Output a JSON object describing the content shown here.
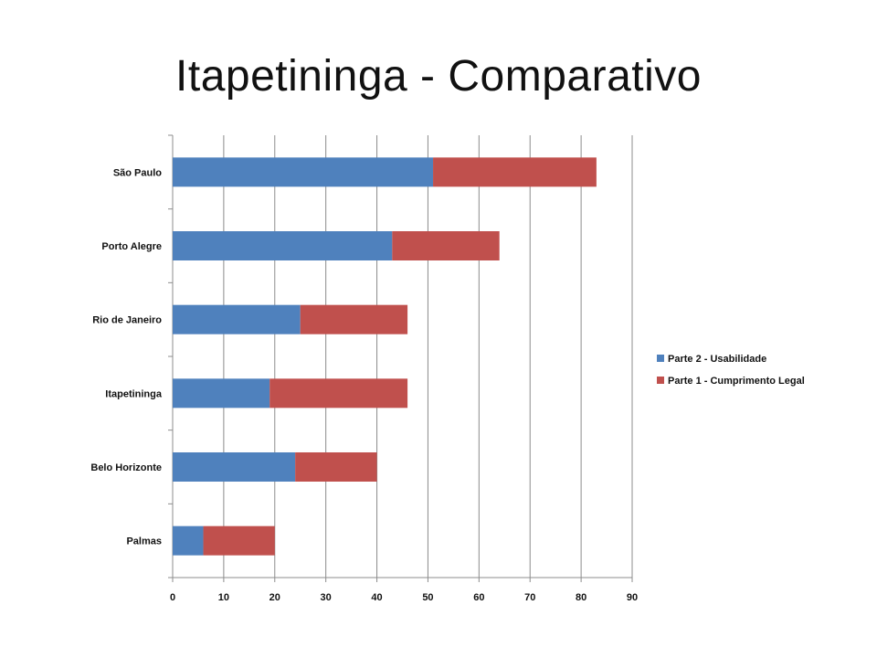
{
  "slide": {
    "title": "Itapetininga - Comparativo"
  },
  "chart_data": {
    "type": "bar",
    "orientation": "horizontal",
    "stacked": true,
    "title": "",
    "xlabel": "",
    "ylabel": "",
    "categories": [
      "São Paulo",
      "Porto Alegre",
      "Rio de Janeiro",
      "Itapetininga",
      "Belo Horizonte",
      "Palmas"
    ],
    "series": [
      {
        "name": "Parte 2 - Usabilidade",
        "color": "#4f81bd",
        "values": [
          51,
          43,
          25,
          19,
          24,
          6
        ]
      },
      {
        "name": "Parte 1 - Cumprimento Legal",
        "color": "#c0504d",
        "values": [
          32,
          21,
          21,
          27,
          16,
          14
        ]
      }
    ],
    "xlim": [
      0,
      90
    ],
    "xticks": [
      0,
      10,
      20,
      30,
      40,
      50,
      60,
      70,
      80,
      90
    ],
    "grid": "vertical",
    "legend_position": "right",
    "legend_order": [
      "Parte 2 - Usabilidade",
      "Parte 1 - Cumprimento Legal"
    ]
  }
}
